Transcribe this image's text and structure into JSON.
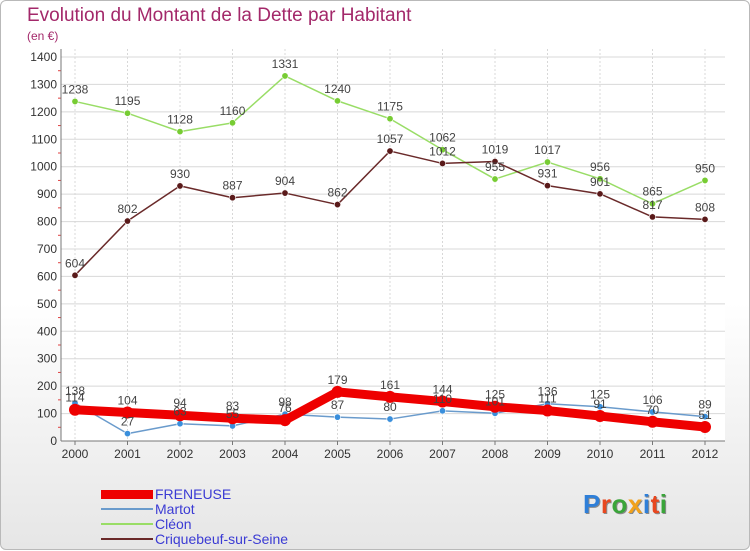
{
  "header": {
    "title": "Evolution du Montant de la Dette par Habitant",
    "unit": "(en €)"
  },
  "logo": {
    "text": "Proxiti"
  },
  "colors": {
    "title": "#a3286a",
    "legend_text": "#3b3bd4",
    "grid": "#d8d8d8",
    "axis_text": "#333333"
  },
  "chart_data": {
    "type": "line",
    "title": "Evolution du Montant de la Dette par Habitant",
    "subtitle": "(en €)",
    "xlabel": "",
    "ylabel": "",
    "x": [
      "2000",
      "2001",
      "2002",
      "2003",
      "2004",
      "2005",
      "2006",
      "2007",
      "2008",
      "2009",
      "2010",
      "2011",
      "2012"
    ],
    "ylim": [
      0,
      1400
    ],
    "yticks": [
      0,
      100,
      200,
      300,
      400,
      500,
      600,
      700,
      800,
      900,
      1000,
      1100,
      1200,
      1300,
      1400
    ],
    "grid": true,
    "legend_position": "bottom-left",
    "series": [
      {
        "name": "FRENEUSE",
        "color": "#ee0000",
        "line_width": 9,
        "marker_color": "#ee0000",
        "values": [
          114,
          104,
          94,
          83,
          76,
          179,
          161,
          144,
          125,
          111,
          91,
          70,
          51
        ],
        "labels": [
          "114",
          "104",
          "94",
          "83",
          "76",
          "179",
          "161",
          "144",
          "125",
          "111",
          "91",
          "70",
          "51"
        ]
      },
      {
        "name": "Martot",
        "color": "#6a9bcc",
        "line_width": 1.5,
        "marker_color": "#3a8fdc",
        "values": [
          138,
          27,
          63,
          55,
          98,
          87,
          80,
          110,
          101,
          136,
          125,
          106,
          89
        ],
        "labels": [
          "138",
          "27",
          "63",
          "55",
          "98",
          "87",
          "80",
          "110",
          "101",
          "136",
          "125",
          "106",
          "89"
        ]
      },
      {
        "name": "Cléon",
        "color": "#99dd66",
        "line_width": 1.5,
        "marker_color": "#77cc33",
        "values": [
          1238,
          1195,
          1128,
          1160,
          1331,
          1240,
          1175,
          1062,
          955,
          1017,
          956,
          865,
          950
        ],
        "labels": [
          "1238",
          "1195",
          "1128",
          "1160",
          "1331",
          "1240",
          "1175",
          "1062",
          "955",
          "1017",
          "956",
          "865",
          "950"
        ]
      },
      {
        "name": "Criquebeuf-sur-Seine",
        "color": "#6a2a2a",
        "line_width": 1.5,
        "marker_color": "#5a1a1a",
        "values": [
          604,
          802,
          930,
          887,
          904,
          862,
          1057,
          1012,
          1019,
          931,
          901,
          817,
          808
        ],
        "labels": [
          "604",
          "802",
          "930",
          "887",
          "904",
          "862",
          "1057",
          "1012",
          "1019",
          "931",
          "901",
          "817",
          "808"
        ]
      }
    ]
  }
}
